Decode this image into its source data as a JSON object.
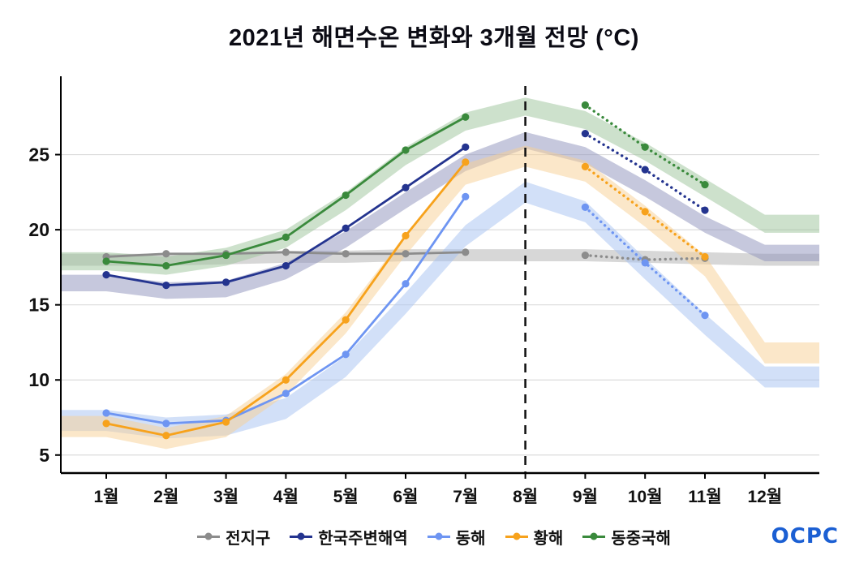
{
  "title": "2021년 해면수온 변화와 3개월 전망 (°C)",
  "logo_text": "OCPC",
  "chart_data": {
    "type": "line",
    "title": "2021년 해면수온 변화와 3개월 전망 (°C)",
    "categories": [
      "1월",
      "2월",
      "3월",
      "4월",
      "5월",
      "6월",
      "7월",
      "8월",
      "9월",
      "10월",
      "11월",
      "12월"
    ],
    "ylim": [
      3.8,
      30
    ],
    "yticks": [
      5,
      10,
      15,
      20,
      25
    ],
    "grid": "horizontal",
    "legend_position": "bottom",
    "divider_month": 8,
    "series": [
      {
        "name": "전지구",
        "color": "#8c8c8c",
        "band_color": "#b0b0b0",
        "observed_months": [
          1,
          2,
          3,
          4,
          5,
          6,
          7
        ],
        "observed": [
          18.2,
          18.4,
          18.4,
          18.5,
          18.4,
          18.4,
          18.5
        ],
        "forecast_months": [
          9,
          10,
          11
        ],
        "forecast": [
          18.3,
          18.0,
          18.1
        ],
        "band_low": [
          17.6,
          17.6,
          17.7,
          17.8,
          17.8,
          17.9,
          17.9,
          17.9,
          17.9,
          17.8,
          17.7,
          17.6
        ],
        "band_high": [
          18.4,
          18.4,
          18.5,
          18.6,
          18.6,
          18.7,
          18.7,
          18.7,
          18.7,
          18.6,
          18.5,
          18.4
        ]
      },
      {
        "name": "한국주변해역",
        "color": "#24348f",
        "band_color": "#8d92bb",
        "observed_months": [
          1,
          2,
          3,
          4,
          5,
          6,
          7
        ],
        "observed": [
          17.0,
          16.3,
          16.5,
          17.6,
          20.1,
          22.8,
          25.5
        ],
        "forecast_months": [
          9,
          10,
          11
        ],
        "forecast": [
          26.4,
          24.0,
          21.3
        ],
        "band_low": [
          15.9,
          15.4,
          15.5,
          16.7,
          18.8,
          21.4,
          23.9,
          25.4,
          24.4,
          22.2,
          19.8,
          17.9
        ],
        "band_high": [
          17.0,
          16.5,
          16.6,
          17.8,
          19.9,
          22.5,
          25.0,
          26.5,
          25.5,
          23.3,
          20.9,
          19.0
        ]
      },
      {
        "name": "동해",
        "color": "#6e95f2",
        "band_color": "#a6c1f2",
        "observed_months": [
          1,
          2,
          3,
          4,
          5,
          6,
          7
        ],
        "observed": [
          7.8,
          7.1,
          7.3,
          9.1,
          11.7,
          16.4,
          22.2
        ],
        "forecast_months": [
          9,
          10,
          11
        ],
        "forecast": [
          21.5,
          17.8,
          14.3
        ],
        "band_low": [
          6.6,
          6.1,
          6.3,
          7.4,
          10.2,
          14.4,
          18.9,
          21.8,
          20.5,
          16.7,
          13.0,
          9.5
        ],
        "band_high": [
          8.0,
          7.5,
          7.7,
          8.8,
          11.6,
          15.8,
          20.3,
          23.2,
          21.9,
          18.1,
          14.4,
          10.9
        ]
      },
      {
        "name": "황해",
        "color": "#f7a21c",
        "band_color": "#f7cf93",
        "observed_months": [
          1,
          2,
          3,
          4,
          5,
          6,
          7
        ],
        "observed": [
          7.1,
          6.3,
          7.2,
          10.0,
          14.0,
          19.6,
          24.5
        ],
        "forecast_months": [
          9,
          10,
          11
        ],
        "forecast": [
          24.2,
          21.2,
          18.2
        ],
        "band_low": [
          6.2,
          5.4,
          6.2,
          9.0,
          13.1,
          18.3,
          23.0,
          24.2,
          23.2,
          20.2,
          16.9,
          11.1
        ],
        "band_high": [
          7.6,
          6.8,
          7.6,
          10.4,
          14.5,
          19.7,
          24.4,
          25.6,
          24.6,
          21.6,
          18.3,
          12.5
        ]
      },
      {
        "name": "동중국해",
        "color": "#3a8a3c",
        "band_color": "#9cc49a",
        "observed_months": [
          1,
          2,
          3,
          4,
          5,
          6,
          7
        ],
        "observed": [
          17.9,
          17.6,
          18.3,
          19.5,
          22.3,
          25.3,
          27.5
        ],
        "forecast_months": [
          9,
          10,
          11
        ],
        "forecast": [
          28.3,
          25.5,
          23.0
        ],
        "band_low": [
          17.3,
          17.0,
          17.6,
          18.8,
          21.3,
          24.3,
          26.6,
          27.6,
          26.7,
          24.6,
          22.2,
          19.8
        ],
        "band_high": [
          18.5,
          18.2,
          18.8,
          20.0,
          22.5,
          25.5,
          27.8,
          28.8,
          27.9,
          25.8,
          23.4,
          21.0
        ]
      }
    ]
  }
}
